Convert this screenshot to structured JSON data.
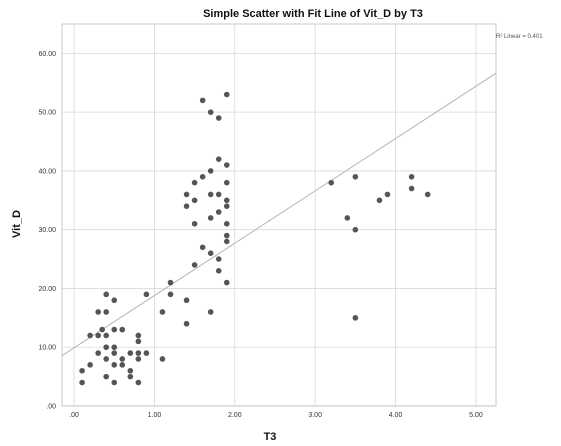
{
  "chart_data": {
    "type": "scatter",
    "title": "Simple Scatter with Fit Line of Vit_D by T3",
    "xlabel": "T3",
    "ylabel": "Vit_D",
    "xlim": [
      -0.15,
      5.25
    ],
    "ylim": [
      0,
      65
    ],
    "x_ticks": [
      0,
      1,
      2,
      3,
      4,
      5
    ],
    "x_tick_labels": [
      ".00",
      "1.00",
      "2.00",
      "3.00",
      "4.00",
      "5.00"
    ],
    "y_ticks": [
      0,
      10,
      20,
      30,
      40,
      50,
      60
    ],
    "y_tick_labels": [
      ".00",
      "10.00",
      "20.00",
      "30.00",
      "40.00",
      "50.00",
      "60.00"
    ],
    "grid": true,
    "legend": {
      "label": "R² Linear = 0.401",
      "placement": "top-right"
    },
    "fit_line": {
      "intercept": 9.9,
      "slope": 8.9
    },
    "colors": {
      "points": "#555555",
      "fit_line": "#b3b3b3",
      "grid": "#d9d9d9",
      "frame": "#bbbbbb"
    },
    "series": [
      {
        "points": [
          [
            0.1,
            6
          ],
          [
            0.1,
            4
          ],
          [
            0.2,
            7
          ],
          [
            0.2,
            12
          ],
          [
            0.3,
            12
          ],
          [
            0.3,
            16
          ],
          [
            0.3,
            9
          ],
          [
            0.35,
            13
          ],
          [
            0.4,
            16
          ],
          [
            0.4,
            12
          ],
          [
            0.4,
            19
          ],
          [
            0.4,
            10
          ],
          [
            0.4,
            8
          ],
          [
            0.4,
            5
          ],
          [
            0.5,
            13
          ],
          [
            0.5,
            10
          ],
          [
            0.5,
            9
          ],
          [
            0.5,
            7
          ],
          [
            0.5,
            4
          ],
          [
            0.5,
            18
          ],
          [
            0.6,
            13
          ],
          [
            0.6,
            8
          ],
          [
            0.6,
            7
          ],
          [
            0.7,
            9
          ],
          [
            0.7,
            6
          ],
          [
            0.7,
            5
          ],
          [
            0.8,
            12
          ],
          [
            0.8,
            11
          ],
          [
            0.8,
            9
          ],
          [
            0.8,
            8
          ],
          [
            0.8,
            4
          ],
          [
            0.9,
            19
          ],
          [
            0.9,
            9
          ],
          [
            1.1,
            8
          ],
          [
            1.1,
            16
          ],
          [
            1.2,
            21
          ],
          [
            1.2,
            19
          ],
          [
            1.4,
            14
          ],
          [
            1.4,
            18
          ],
          [
            1.4,
            36
          ],
          [
            1.4,
            34
          ],
          [
            1.5,
            24
          ],
          [
            1.5,
            31
          ],
          [
            1.5,
            35
          ],
          [
            1.5,
            38
          ],
          [
            1.6,
            52
          ],
          [
            1.6,
            39
          ],
          [
            1.6,
            27
          ],
          [
            1.7,
            50
          ],
          [
            1.7,
            40
          ],
          [
            1.7,
            36
          ],
          [
            1.7,
            32
          ],
          [
            1.7,
            26
          ],
          [
            1.7,
            16
          ],
          [
            1.8,
            49
          ],
          [
            1.8,
            42
          ],
          [
            1.8,
            36
          ],
          [
            1.8,
            33
          ],
          [
            1.8,
            25
          ],
          [
            1.8,
            23
          ],
          [
            1.9,
            53
          ],
          [
            1.9,
            41
          ],
          [
            1.9,
            38
          ],
          [
            1.9,
            35
          ],
          [
            1.9,
            34
          ],
          [
            1.9,
            31
          ],
          [
            1.9,
            29
          ],
          [
            1.9,
            28
          ],
          [
            1.9,
            21
          ],
          [
            3.2,
            38
          ],
          [
            3.4,
            32
          ],
          [
            3.5,
            39
          ],
          [
            3.5,
            30
          ],
          [
            3.5,
            15
          ],
          [
            3.8,
            35
          ],
          [
            3.9,
            36
          ],
          [
            4.2,
            39
          ],
          [
            4.2,
            37
          ],
          [
            4.4,
            36
          ]
        ]
      }
    ]
  }
}
